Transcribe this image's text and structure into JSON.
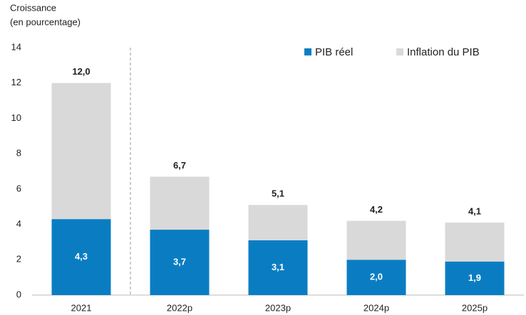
{
  "chart_data": {
    "type": "stacked_bar",
    "y_label_lines": [
      "Croissance",
      "(en pourcentage)"
    ],
    "categories": [
      "2021",
      "2022p",
      "2023p",
      "2024p",
      "2025p"
    ],
    "series": [
      {
        "name": "PIB réel",
        "color": "#0a7dc2",
        "values": [
          4.3,
          3.7,
          3.1,
          2.0,
          1.9
        ],
        "value_labels": [
          "4,3",
          "3,7",
          "3,1",
          "2,0",
          "1,9"
        ]
      },
      {
        "name": "Inflation du PIB",
        "color": "#d9d9d9",
        "values": [
          7.7,
          3.0,
          2.0,
          2.2,
          2.2
        ]
      }
    ],
    "total_labels": [
      "12,0",
      "6,7",
      "5,1",
      "4,2",
      "4,1"
    ],
    "ylim": [
      0,
      14
    ],
    "yticks": [
      0,
      2,
      4,
      6,
      8,
      10,
      12,
      14
    ],
    "grid": false,
    "legend": "top-right"
  }
}
